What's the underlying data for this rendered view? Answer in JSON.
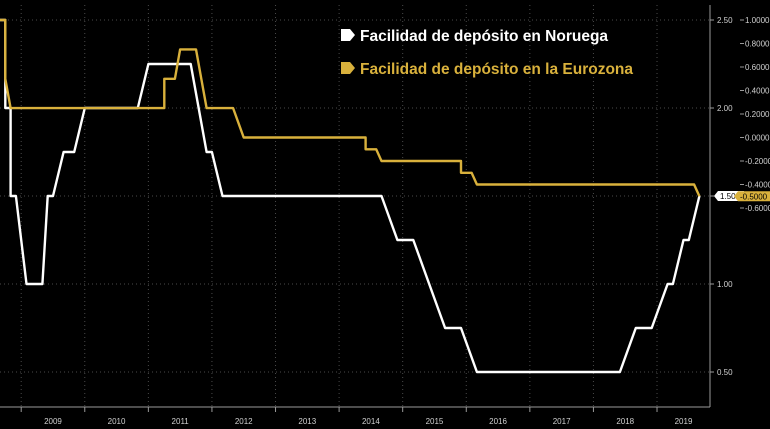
{
  "chart_data": {
    "type": "line",
    "title": "",
    "xlabel": "",
    "x_ticks": [
      "2009",
      "2010",
      "2011",
      "2012",
      "2013",
      "2014",
      "2015",
      "2016",
      "2017",
      "2018",
      "2019"
    ],
    "y_left_axis": {
      "ticks": [
        "2.50",
        "2.00",
        "1.50",
        "1.00",
        "0.50"
      ],
      "range": [
        0.4,
        2.5
      ]
    },
    "y_right_axis": {
      "ticks": [
        "1.0000",
        "0.8000",
        "0.6000",
        "0.4000",
        "0.2000",
        "0.0000",
        "-0.2000",
        "-0.4000",
        "-0.6000"
      ],
      "range": [
        -0.63,
        1.0
      ]
    },
    "grid": true,
    "legend_position": "top-center",
    "series": [
      {
        "name": "Facilidad de depósito en Noruega",
        "color": "#ffffff",
        "axis": "left",
        "last_value_label": "1.50",
        "points": [
          [
            "2008-09",
            2.5
          ],
          [
            "2008-10",
            2.5
          ],
          [
            "2008-10",
            2.0
          ],
          [
            "2008-11",
            2.0
          ],
          [
            "2008-11",
            1.5
          ],
          [
            "2008-12",
            1.5
          ],
          [
            "2009-02",
            1.0
          ],
          [
            "2009-03",
            1.0
          ],
          [
            "2009-04",
            1.0
          ],
          [
            "2009-05",
            1.0
          ],
          [
            "2009-06",
            1.5
          ],
          [
            "2009-07",
            1.5
          ],
          [
            "2009-09",
            1.75
          ],
          [
            "2009-10",
            1.75
          ],
          [
            "2009-11",
            1.75
          ],
          [
            "2010-01",
            2.0
          ],
          [
            "2010-04",
            2.0
          ],
          [
            "2010-07",
            2.0
          ],
          [
            "2010-10",
            2.0
          ],
          [
            "2010-11",
            2.0
          ],
          [
            "2011-01",
            2.25
          ],
          [
            "2011-05",
            2.25
          ],
          [
            "2011-06",
            2.25
          ],
          [
            "2011-07",
            2.25
          ],
          [
            "2011-09",
            2.25
          ],
          [
            "2011-12",
            1.75
          ],
          [
            "2012-01",
            1.75
          ],
          [
            "2012-03",
            1.5
          ],
          [
            "2012-06",
            1.5
          ],
          [
            "2012-09",
            1.5
          ],
          [
            "2013-06",
            1.5
          ],
          [
            "2013-09",
            1.5
          ],
          [
            "2013-12",
            1.5
          ],
          [
            "2014-03",
            1.5
          ],
          [
            "2014-06",
            1.5
          ],
          [
            "2014-09",
            1.5
          ],
          [
            "2014-12",
            1.25
          ],
          [
            "2015-03",
            1.25
          ],
          [
            "2015-06",
            1.0
          ],
          [
            "2015-09",
            0.75
          ],
          [
            "2015-12",
            0.75
          ],
          [
            "2016-03",
            0.5
          ],
          [
            "2016-06",
            0.5
          ],
          [
            "2016-09",
            0.5
          ],
          [
            "2017-06",
            0.5
          ],
          [
            "2018-06",
            0.5
          ],
          [
            "2018-09",
            0.75
          ],
          [
            "2018-12",
            0.75
          ],
          [
            "2019-03",
            1.0
          ],
          [
            "2019-04",
            1.0
          ],
          [
            "2019-06",
            1.25
          ],
          [
            "2019-07",
            1.25
          ],
          [
            "2019-09",
            1.5
          ]
        ]
      },
      {
        "name": "Facilidad de depósito en la Eurozona",
        "color": "#d9b13c",
        "axis": "right",
        "last_value_label": "-0.5000",
        "points": [
          [
            "2008-09",
            1.0
          ],
          [
            "2008-10",
            1.0
          ],
          [
            "2008-10",
            0.5
          ],
          [
            "2008-11",
            0.25
          ],
          [
            "2008-12",
            0.25
          ],
          [
            "2009-01",
            0.25
          ],
          [
            "2009-04",
            0.25
          ],
          [
            "2009-05",
            0.25
          ],
          [
            "2010-10",
            0.25
          ],
          [
            "2011-04",
            0.25
          ],
          [
            "2011-04",
            0.5
          ],
          [
            "2011-05",
            0.5
          ],
          [
            "2011-06",
            0.5
          ],
          [
            "2011-07",
            0.75
          ],
          [
            "2011-08",
            0.75
          ],
          [
            "2011-10",
            0.75
          ],
          [
            "2011-11",
            0.5
          ],
          [
            "2011-12",
            0.25
          ],
          [
            "2012-01",
            0.25
          ],
          [
            "2012-05",
            0.25
          ],
          [
            "2012-07",
            0.0
          ],
          [
            "2012-09",
            0.0
          ],
          [
            "2013-06",
            0.0
          ],
          [
            "2014-06",
            0.0
          ],
          [
            "2014-06",
            -0.1
          ],
          [
            "2014-08",
            -0.1
          ],
          [
            "2014-09",
            -0.2
          ],
          [
            "2015-06",
            -0.2
          ],
          [
            "2015-12",
            -0.2
          ],
          [
            "2015-12",
            -0.3
          ],
          [
            "2016-02",
            -0.3
          ],
          [
            "2016-03",
            -0.4
          ],
          [
            "2016-06",
            -0.4
          ],
          [
            "2017-06",
            -0.4
          ],
          [
            "2018-06",
            -0.4
          ],
          [
            "2019-06",
            -0.4
          ],
          [
            "2019-08",
            -0.4
          ],
          [
            "2019-09",
            -0.5
          ]
        ]
      }
    ]
  },
  "legend": {
    "norway_label": "Facilidad de depósito en Noruega",
    "eurozone_label": "Facilidad de depósito en la Eurozona"
  },
  "colors": {
    "background": "#000000",
    "grid": "#4a4a4a",
    "axis": "#9a9a9a"
  }
}
